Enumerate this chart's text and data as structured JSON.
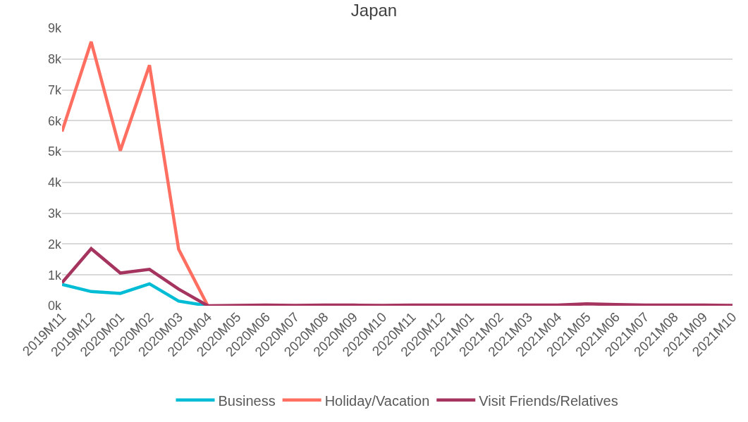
{
  "chart_data": {
    "type": "line",
    "title": "Japan",
    "categories": [
      "2019M11",
      "2019M12",
      "2020M01",
      "2020M02",
      "2020M03",
      "2020M04",
      "2020M05",
      "2020M06",
      "2020M07",
      "2020M08",
      "2020M09",
      "2020M10",
      "2020M11",
      "2020M12",
      "2021M01",
      "2021M02",
      "2021M03",
      "2021M04",
      "2021M05",
      "2021M06",
      "2021M07",
      "2021M08",
      "2021M09",
      "2021M10"
    ],
    "series": [
      {
        "name": "Business",
        "color": "#00bcd4",
        "values": [
          690,
          460,
          400,
          710,
          150,
          0,
          null,
          null,
          null,
          null,
          null,
          null,
          null,
          null,
          null,
          null,
          null,
          null,
          null,
          null,
          null,
          null,
          null,
          null
        ]
      },
      {
        "name": "Holiday/Vacation",
        "color": "#ff6f61",
        "values": [
          5650,
          8560,
          5030,
          7800,
          1830,
          0,
          null,
          null,
          null,
          null,
          null,
          null,
          null,
          null,
          null,
          null,
          null,
          null,
          null,
          null,
          null,
          null,
          null,
          null
        ]
      },
      {
        "name": "Visit Friends/Relatives",
        "color": "#a5345e",
        "values": [
          750,
          1850,
          1060,
          1180,
          540,
          0,
          10,
          20,
          10,
          20,
          20,
          10,
          20,
          20,
          20,
          20,
          20,
          20,
          60,
          40,
          20,
          20,
          20,
          10
        ]
      }
    ],
    "ylim": [
      0,
      9000
    ],
    "yticks": [
      {
        "value": 0,
        "label": "0k"
      },
      {
        "value": 1000,
        "label": "1k"
      },
      {
        "value": 2000,
        "label": "2k"
      },
      {
        "value": 3000,
        "label": "3k"
      },
      {
        "value": 4000,
        "label": "4k"
      },
      {
        "value": 5000,
        "label": "5k"
      },
      {
        "value": 6000,
        "label": "6k"
      },
      {
        "value": 7000,
        "label": "7k"
      },
      {
        "value": 8000,
        "label": "8k"
      },
      {
        "value": 9000,
        "label": "9k"
      }
    ],
    "grid": "y",
    "legend": "bottom",
    "marker": "none",
    "line_style": "solid"
  }
}
